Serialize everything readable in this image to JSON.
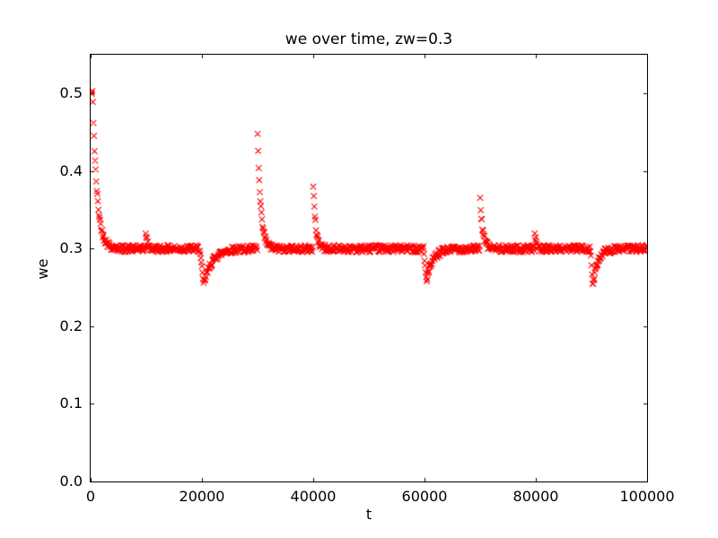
{
  "chart_data": {
    "type": "scatter",
    "title": "we over time, zw=0.3",
    "xlabel": "t",
    "ylabel": "we",
    "xlim": [
      0,
      100000
    ],
    "ylim": [
      0,
      0.55
    ],
    "grid": false,
    "legend": null,
    "xticks": {
      "values": [
        0,
        20000,
        40000,
        60000,
        80000,
        100000
      ],
      "labels": [
        "0",
        "20000",
        "40000",
        "60000",
        "80000",
        "100000"
      ]
    },
    "yticks": {
      "values": [
        0.0,
        0.1,
        0.2,
        0.3,
        0.4,
        0.5
      ],
      "labels": [
        "0.0",
        "0.1",
        "0.2",
        "0.3",
        "0.4",
        "0.5"
      ]
    },
    "colors": {
      "marker": "#ff0000",
      "axes": "#000000",
      "background": "#ffffff"
    },
    "marker": {
      "shape": "x",
      "size": 6.4,
      "stroke_width": 1.1
    },
    "series": {
      "name": "we",
      "baseline": 0.3,
      "t_start": 100,
      "t_end": 100000,
      "dt": 100,
      "noise_amplitude": 0.0045,
      "noise_seed": 42,
      "initial_transient": {
        "start_value": 0.5,
        "amplitude": 0.2,
        "hold_until_t": 350,
        "decay_tau": 780
      },
      "events": [
        {
          "type": "spike",
          "t": 9900,
          "amplitude": 0.023,
          "tau": 260
        },
        {
          "type": "dip",
          "t": 19600,
          "amplitude": 0.047,
          "ramp": 700,
          "tau": 1500
        },
        {
          "type": "spike",
          "t": 29950,
          "amplitude": 0.162,
          "tau": 560
        },
        {
          "type": "spike",
          "t": 39950,
          "amplitude": 0.09,
          "tau": 450
        },
        {
          "type": "dip",
          "t": 59800,
          "amplitude": 0.041,
          "ramp": 550,
          "tau": 1200
        },
        {
          "type": "spike",
          "t": 69950,
          "amplitude": 0.072,
          "tau": 480
        },
        {
          "type": "spike",
          "t": 79800,
          "amplitude": 0.023,
          "tau": 260
        },
        {
          "type": "dip",
          "t": 89800,
          "amplitude": 0.049,
          "ramp": 450,
          "tau": 900
        }
      ]
    },
    "key_points": [
      [
        100,
        0.5
      ],
      [
        300,
        0.5
      ],
      [
        500,
        0.477
      ],
      [
        700,
        0.457
      ],
      [
        900,
        0.434
      ],
      [
        1100,
        0.414
      ],
      [
        1300,
        0.392
      ],
      [
        1500,
        0.371
      ],
      [
        1700,
        0.351
      ],
      [
        2100,
        0.335
      ],
      [
        2600,
        0.318
      ],
      [
        3500,
        0.305
      ],
      [
        5000,
        0.3
      ],
      [
        9900,
        0.322
      ],
      [
        10300,
        0.308
      ],
      [
        19600,
        0.3
      ],
      [
        20300,
        0.253
      ],
      [
        21500,
        0.272
      ],
      [
        23000,
        0.287
      ],
      [
        24800,
        0.298
      ],
      [
        29950,
        0.46
      ],
      [
        30100,
        0.443
      ],
      [
        30300,
        0.417
      ],
      [
        30500,
        0.398
      ],
      [
        30700,
        0.38
      ],
      [
        30900,
        0.362
      ],
      [
        31200,
        0.345
      ],
      [
        31700,
        0.318
      ],
      [
        32500,
        0.303
      ],
      [
        39950,
        0.389
      ],
      [
        40150,
        0.368
      ],
      [
        40350,
        0.351
      ],
      [
        40600,
        0.34
      ],
      [
        41300,
        0.312
      ],
      [
        50000,
        0.305
      ],
      [
        59800,
        0.3
      ],
      [
        60350,
        0.26
      ],
      [
        61500,
        0.276
      ],
      [
        63000,
        0.29
      ],
      [
        64500,
        0.298
      ],
      [
        69950,
        0.371
      ],
      [
        70150,
        0.352
      ],
      [
        70500,
        0.34
      ],
      [
        71200,
        0.315
      ],
      [
        72000,
        0.303
      ],
      [
        79800,
        0.322
      ],
      [
        80200,
        0.308
      ],
      [
        89800,
        0.3
      ],
      [
        90250,
        0.251
      ],
      [
        91200,
        0.272
      ],
      [
        92300,
        0.288
      ],
      [
        93500,
        0.297
      ],
      [
        100000,
        0.3
      ]
    ]
  }
}
